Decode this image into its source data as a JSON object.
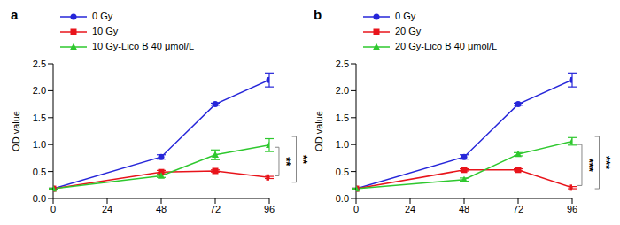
{
  "chart_data": [
    {
      "type": "line",
      "title": "a",
      "y_label": "OD value",
      "x": [
        0,
        48,
        72,
        96
      ],
      "xlim": [
        0,
        96
      ],
      "xticks": [
        0,
        24,
        48,
        72,
        96
      ],
      "ylim": [
        0,
        2.5
      ],
      "yticks": [
        {
          "value": 0,
          "label": "0.0"
        },
        0.5,
        {
          "value": 1,
          "label": "1.0"
        },
        1.5,
        {
          "value": 2,
          "label": "2.0"
        },
        2.5
      ],
      "series": [
        {
          "name": "0 Gy",
          "color": "#2626d9",
          "marker": "circle",
          "values": [
            0.18,
            0.77,
            1.75,
            2.2
          ],
          "errors": [
            0.01,
            0.04,
            0.02,
            0.13
          ]
        },
        {
          "name": "10 Gy",
          "color": "#e8141b",
          "marker": "square",
          "values": [
            0.18,
            0.49,
            0.51,
            0.39
          ],
          "errors": [
            0.01,
            0.03,
            0.02,
            0.02
          ]
        },
        {
          "name": "10 Gy-Lico B 40 μmol/L",
          "color": "#2ec82e",
          "marker": "triangle",
          "values": [
            0.18,
            0.42,
            0.81,
            0.99
          ],
          "errors": [
            0.01,
            0.03,
            0.09,
            0.12
          ]
        }
      ],
      "annotations": [
        {
          "text": "**",
          "y": [
            0.42,
            0.95
          ]
        },
        {
          "text": "**",
          "y": [
            0.3,
            1.15
          ]
        }
      ]
    },
    {
      "type": "line",
      "title": "b",
      "y_label": "OD value",
      "x": [
        0,
        48,
        72,
        96
      ],
      "xlim": [
        0,
        96
      ],
      "xticks": [
        0,
        24,
        48,
        72,
        96
      ],
      "ylim": [
        0,
        2.5
      ],
      "yticks": [
        {
          "value": 0,
          "label": "0.0"
        },
        0.5,
        {
          "value": 1,
          "label": "1.0"
        },
        1.5,
        {
          "value": 2,
          "label": "2.0"
        },
        2.5
      ],
      "series": [
        {
          "name": "0 Gy",
          "color": "#2626d9",
          "marker": "circle",
          "values": [
            0.18,
            0.77,
            1.75,
            2.2
          ],
          "errors": [
            0.01,
            0.04,
            0.02,
            0.13
          ]
        },
        {
          "name": "20 Gy",
          "color": "#e8141b",
          "marker": "square",
          "values": [
            0.18,
            0.53,
            0.53,
            0.2
          ],
          "errors": [
            0.01,
            0.02,
            0.02,
            0.02
          ]
        },
        {
          "name": "20 Gy-Lico B 40 μmol/L",
          "color": "#2ec82e",
          "marker": "triangle",
          "values": [
            0.18,
            0.35,
            0.82,
            1.06
          ],
          "errors": [
            0.01,
            0.03,
            0.03,
            0.07
          ]
        }
      ],
      "annotations": [
        {
          "text": "***",
          "y": [
            0.24,
            1.0
          ]
        },
        {
          "text": "***",
          "y": [
            0.18,
            1.15
          ]
        }
      ]
    }
  ]
}
